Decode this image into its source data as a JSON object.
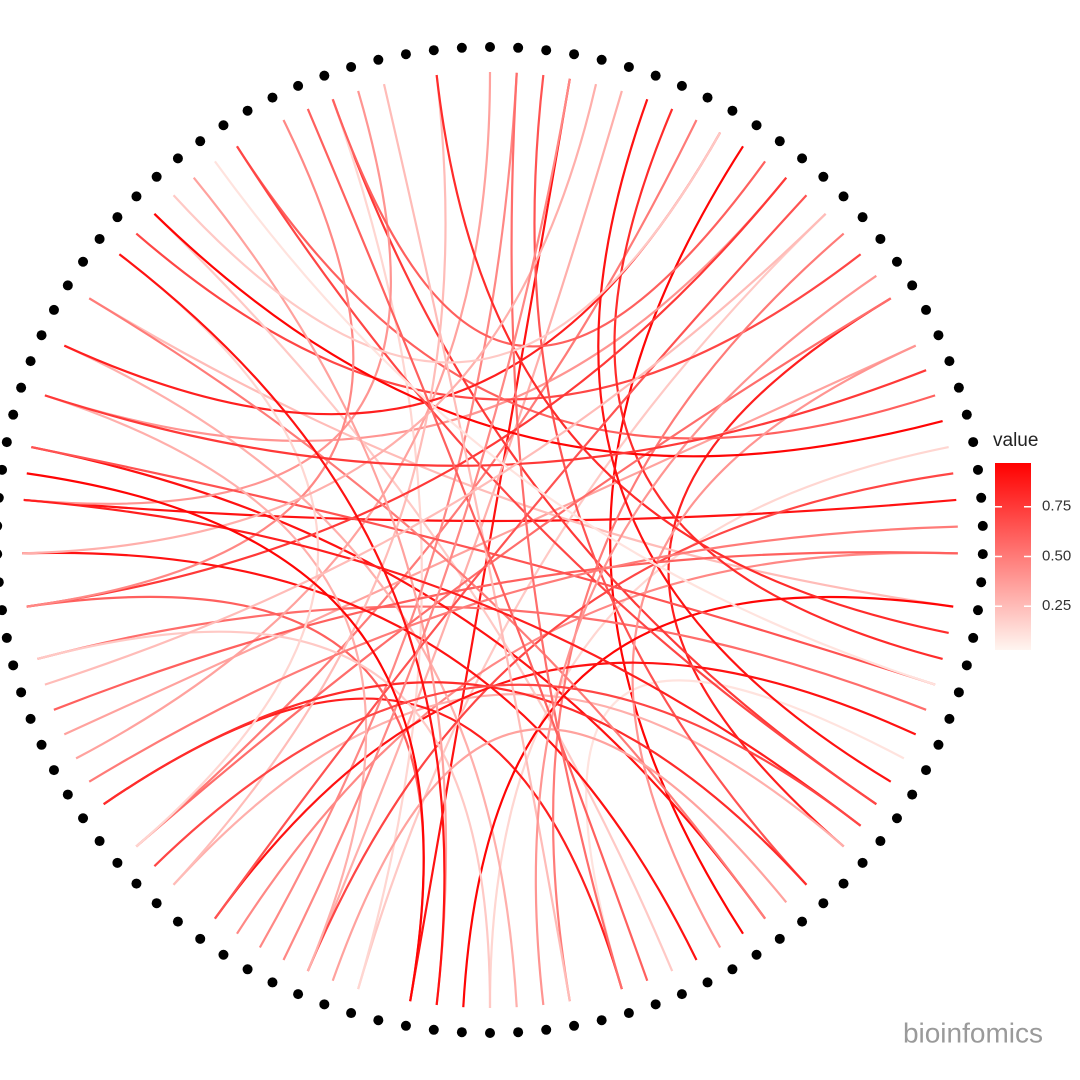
{
  "chart_data": {
    "type": "edge-bundle",
    "node_count": 110,
    "legend_title": "value",
    "clim": [
      0.03,
      0.97
    ],
    "colorbar_ticks": [
      0.25,
      {
        "value": 0.5,
        "label": "0.50"
      },
      0.75
    ],
    "low_color": "#fff5f0",
    "high_color": "#ff0000",
    "node_color": "#000000",
    "watermark": "bioinfomics",
    "edges": [
      {
        "from": 3,
        "to": 58,
        "value": 0.9
      },
      {
        "from": 5,
        "to": 62,
        "value": 0.3
      },
      {
        "from": 8,
        "to": 70,
        "value": 0.5
      },
      {
        "from": 10,
        "to": 45,
        "value": 0.95
      },
      {
        "from": 12,
        "to": 88,
        "value": 0.4
      },
      {
        "from": 14,
        "to": 60,
        "value": 0.2
      },
      {
        "from": 16,
        "to": 95,
        "value": 0.7
      },
      {
        "from": 18,
        "to": 40,
        "value": 0.85
      },
      {
        "from": 20,
        "to": 75,
        "value": 0.35
      },
      {
        "from": 22,
        "to": 100,
        "value": 0.6
      },
      {
        "from": 24,
        "to": 55,
        "value": 0.15
      },
      {
        "from": 26,
        "to": 84,
        "value": 0.9
      },
      {
        "from": 28,
        "to": 65,
        "value": 0.45
      },
      {
        "from": 30,
        "to": 92,
        "value": 0.25
      },
      {
        "from": 32,
        "to": 7,
        "value": 0.8
      },
      {
        "from": 34,
        "to": 78,
        "value": 0.55
      },
      {
        "from": 36,
        "to": 50,
        "value": 0.1
      },
      {
        "from": 38,
        "to": 104,
        "value": 0.75
      },
      {
        "from": 40,
        "to": 68,
        "value": 0.3
      },
      {
        "from": 42,
        "to": 2,
        "value": 0.65
      },
      {
        "from": 44,
        "to": 86,
        "value": 0.9
      },
      {
        "from": 46,
        "to": 20,
        "value": 0.4
      },
      {
        "from": 48,
        "to": 96,
        "value": 0.2
      },
      {
        "from": 50,
        "to": 72,
        "value": 0.85
      },
      {
        "from": 52,
        "to": 15,
        "value": 0.5
      },
      {
        "from": 54,
        "to": 90,
        "value": 0.3
      },
      {
        "from": 56,
        "to": 30,
        "value": 0.95
      },
      {
        "from": 58,
        "to": 80,
        "value": 0.6
      },
      {
        "from": 60,
        "to": 104,
        "value": 0.15
      },
      {
        "from": 62,
        "to": 25,
        "value": 0.7
      },
      {
        "from": 64,
        "to": 1,
        "value": 0.45
      },
      {
        "from": 66,
        "to": 35,
        "value": 0.9
      },
      {
        "from": 68,
        "to": 108,
        "value": 0.25
      },
      {
        "from": 70,
        "to": 18,
        "value": 0.55
      },
      {
        "from": 72,
        "to": 42,
        "value": 0.8
      },
      {
        "from": 74,
        "to": 0,
        "value": 0.35
      },
      {
        "from": 76,
        "to": 28,
        "value": 0.6
      },
      {
        "from": 78,
        "to": 55,
        "value": 0.2
      },
      {
        "from": 80,
        "to": 12,
        "value": 0.75
      },
      {
        "from": 82,
        "to": 47,
        "value": 0.9
      },
      {
        "from": 84,
        "to": 105,
        "value": 0.4
      },
      {
        "from": 86,
        "to": 33,
        "value": 0.65
      },
      {
        "from": 88,
        "to": 62,
        "value": 0.3
      },
      {
        "from": 90,
        "to": 9,
        "value": 0.85
      },
      {
        "from": 92,
        "to": 44,
        "value": 0.5
      },
      {
        "from": 94,
        "to": 70,
        "value": 0.15
      },
      {
        "from": 96,
        "to": 23,
        "value": 0.95
      },
      {
        "from": 98,
        "to": 57,
        "value": 0.35
      },
      {
        "from": 100,
        "to": 38,
        "value": 0.7
      },
      {
        "from": 102,
        "to": 80,
        "value": 0.45
      },
      {
        "from": 104,
        "to": 11,
        "value": 0.6
      },
      {
        "from": 106,
        "to": 52,
        "value": 0.25
      },
      {
        "from": 108,
        "to": 31,
        "value": 0.8
      },
      {
        "from": 1,
        "to": 50,
        "value": 0.55
      },
      {
        "from": 4,
        "to": 82,
        "value": 0.3
      },
      {
        "from": 6,
        "to": 37,
        "value": 0.9
      },
      {
        "from": 9,
        "to": 97,
        "value": 0.2
      },
      {
        "from": 13,
        "to": 66,
        "value": 0.65
      },
      {
        "from": 17,
        "to": 53,
        "value": 0.4
      },
      {
        "from": 21,
        "to": 88,
        "value": 0.75
      },
      {
        "from": 27,
        "to": 73,
        "value": 0.5
      },
      {
        "from": 33,
        "to": 99,
        "value": 0.1
      },
      {
        "from": 39,
        "to": 84,
        "value": 0.85
      },
      {
        "from": 43,
        "to": 61,
        "value": 0.35
      },
      {
        "from": 49,
        "to": 103,
        "value": 0.6
      },
      {
        "from": 57,
        "to": 94,
        "value": 0.9
      },
      {
        "from": 63,
        "to": 3,
        "value": 0.45
      },
      {
        "from": 69,
        "to": 39,
        "value": 0.7
      },
      {
        "from": 77,
        "to": 14,
        "value": 0.25
      },
      {
        "from": 85,
        "to": 58,
        "value": 0.95
      }
    ]
  }
}
